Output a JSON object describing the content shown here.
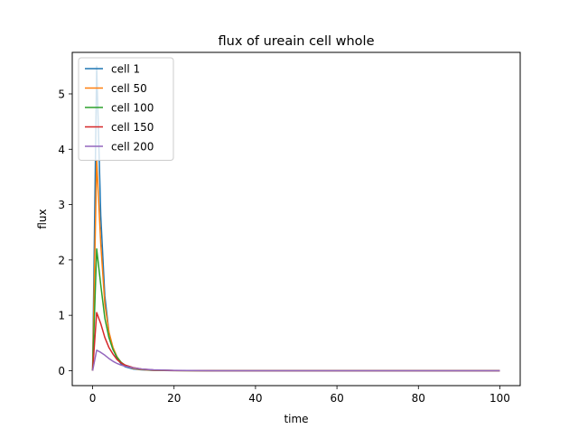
{
  "chart_data": {
    "type": "line",
    "title": "flux of ureain cell whole",
    "xlabel": "time",
    "ylabel": "flux",
    "xlim": [
      -5,
      105
    ],
    "ylim": [
      -0.27,
      5.75
    ],
    "xticks": [
      0,
      20,
      40,
      60,
      80,
      100
    ],
    "xtick_labels": [
      "0",
      "20",
      "40",
      "60",
      "80",
      "100"
    ],
    "yticks": [
      0,
      1,
      2,
      3,
      4,
      5
    ],
    "ytick_labels": [
      "0",
      "1",
      "2",
      "3",
      "4",
      "5"
    ],
    "grid": false,
    "legend_position": "top-left",
    "series": [
      {
        "name": "cell 1",
        "color": "#1f77b4",
        "x": [
          0,
          1,
          2,
          3,
          4,
          5,
          6,
          7,
          8,
          10,
          12,
          15,
          20,
          30,
          50,
          100
        ],
        "y": [
          0,
          5.5,
          2.8,
          1.35,
          0.7,
          0.4,
          0.22,
          0.12,
          0.07,
          0.03,
          0.015,
          0.005,
          0.001,
          0,
          0,
          0
        ]
      },
      {
        "name": "cell 50",
        "color": "#ff7f0e",
        "x": [
          0,
          1,
          2,
          3,
          4,
          5,
          6,
          7,
          8,
          10,
          12,
          15,
          20,
          30,
          50,
          100
        ],
        "y": [
          0,
          3.8,
          2.3,
          1.2,
          0.7,
          0.42,
          0.25,
          0.15,
          0.09,
          0.04,
          0.02,
          0.007,
          0.002,
          0,
          0,
          0
        ]
      },
      {
        "name": "cell 100",
        "color": "#2ca02c",
        "x": [
          0,
          1,
          2,
          3,
          4,
          5,
          6,
          7,
          8,
          10,
          12,
          15,
          20,
          30,
          50,
          100
        ],
        "y": [
          0,
          2.2,
          1.55,
          0.95,
          0.6,
          0.38,
          0.24,
          0.15,
          0.1,
          0.05,
          0.025,
          0.01,
          0.003,
          0,
          0,
          0
        ]
      },
      {
        "name": "cell 150",
        "color": "#d62728",
        "x": [
          0,
          1,
          2,
          3,
          4,
          5,
          6,
          7,
          8,
          10,
          12,
          15,
          20,
          30,
          50,
          100
        ],
        "y": [
          0,
          1.05,
          0.85,
          0.6,
          0.42,
          0.3,
          0.2,
          0.14,
          0.1,
          0.055,
          0.03,
          0.012,
          0.004,
          0,
          0,
          0
        ]
      },
      {
        "name": "cell 200",
        "color": "#9467bd",
        "x": [
          0,
          1,
          2,
          3,
          4,
          5,
          6,
          7,
          8,
          10,
          12,
          15,
          20,
          30,
          50,
          100
        ],
        "y": [
          0,
          0.37,
          0.33,
          0.28,
          0.22,
          0.17,
          0.13,
          0.1,
          0.08,
          0.05,
          0.03,
          0.015,
          0.005,
          0,
          0,
          0
        ]
      }
    ]
  }
}
